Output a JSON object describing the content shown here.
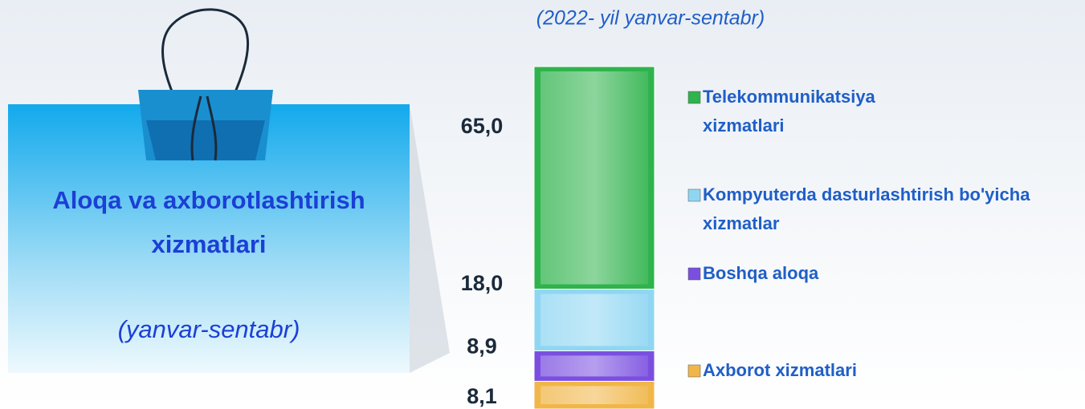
{
  "chart_data": {
    "type": "bar",
    "stacked": true,
    "title": "Aloqa va axborotlashtirish xizmatlari",
    "title_note": "(yanvar-sentabr)",
    "subtitle": "(2022- yil yanvar-sentabr)",
    "categories": [
      null
    ],
    "series": [
      {
        "name": "Telekommunikatsiya xizmatlari",
        "color": "#2fb34c",
        "values": [
          65.0
        ],
        "value_labels": [
          "65,0"
        ]
      },
      {
        "name": "Kompyuterda dasturlashtirish bo'yicha xizmatlar",
        "color": "#8fd6f2",
        "values": [
          18.0
        ],
        "value_labels": [
          "18,0"
        ]
      },
      {
        "name": "Boshqa aloqa",
        "color": "#7a4fe0",
        "values": [
          8.9
        ],
        "value_labels": [
          "8,9"
        ]
      },
      {
        "name": "Axborot xizmatlari",
        "color": "#f0b648",
        "values": [
          8.1
        ],
        "value_labels": [
          "8,1"
        ]
      }
    ]
  }
}
